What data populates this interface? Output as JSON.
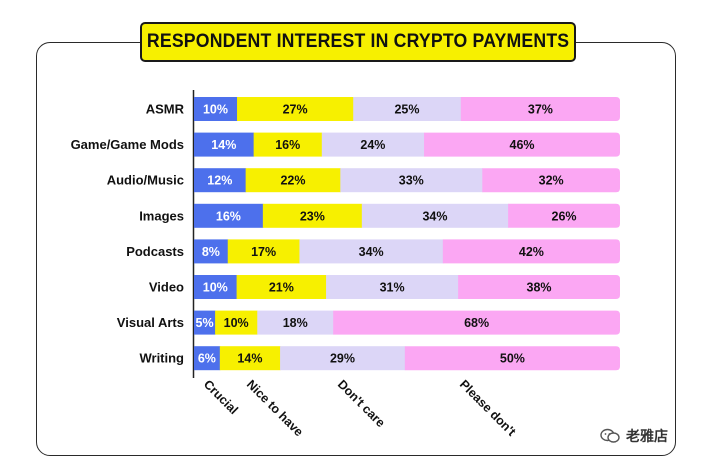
{
  "title": "RESPONDENT INTEREST IN CRYPTO PAYMENTS",
  "watermark": "老雅店",
  "colors": {
    "crucial": "#4d70ec",
    "nice_to_have": "#f7f000",
    "dont_care": "#dcd6f7",
    "please_dont": "#fba7f3"
  },
  "chart_data": {
    "type": "bar",
    "orientation": "horizontal",
    "stacked": true,
    "percent": true,
    "xlim": [
      0,
      100
    ],
    "title": "RESPONDENT INTEREST IN CRYPTO PAYMENTS",
    "categories": [
      "ASMR",
      "Game/Game Mods",
      "Audio/Music",
      "Images",
      "Podcasts",
      "Video",
      "Visual Arts",
      "Writing"
    ],
    "series": [
      {
        "name": "Crucial",
        "values": [
          10,
          14,
          12,
          16,
          8,
          10,
          5,
          6
        ]
      },
      {
        "name": "Nice to have",
        "values": [
          27,
          16,
          22,
          23,
          17,
          21,
          10,
          14
        ]
      },
      {
        "name": "Don't care",
        "values": [
          25,
          24,
          33,
          34,
          34,
          31,
          18,
          29
        ]
      },
      {
        "name": "Please don't",
        "values": [
          37,
          46,
          32,
          26,
          42,
          38,
          68,
          50
        ]
      }
    ],
    "legend": "bottom, rotated labels under bar segments"
  }
}
